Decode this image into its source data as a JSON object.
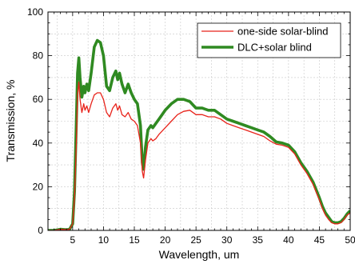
{
  "chart_data": {
    "type": "line",
    "title": "",
    "xlabel": "Wavelength, um",
    "ylabel": "Transmission, %",
    "xlim": [
      1,
      50
    ],
    "ylim": [
      0,
      100
    ],
    "xticks": [
      5,
      10,
      15,
      20,
      25,
      30,
      35,
      40,
      45,
      50
    ],
    "yticks": [
      0,
      20,
      40,
      60,
      80,
      100
    ],
    "xtick_labels": [
      "5",
      "10",
      "15",
      "20",
      "25",
      "30",
      "35",
      "40",
      "45",
      "50"
    ],
    "ytick_labels": [
      "0",
      "20",
      "40",
      "60",
      "80",
      "100"
    ],
    "grid": true,
    "legend_position": "top-right",
    "series": [
      {
        "name": "one-side solar-blind",
        "color": "#e8231b",
        "points": [
          [
            1,
            0
          ],
          [
            2,
            0
          ],
          [
            3,
            0.5
          ],
          [
            4,
            0.3
          ],
          [
            4.5,
            0.5
          ],
          [
            5,
            3
          ],
          [
            5.3,
            15
          ],
          [
            5.6,
            40
          ],
          [
            5.8,
            62
          ],
          [
            6.0,
            68
          ],
          [
            6.2,
            60
          ],
          [
            6.5,
            54
          ],
          [
            6.8,
            58
          ],
          [
            7.0,
            55
          ],
          [
            7.3,
            57
          ],
          [
            7.6,
            54
          ],
          [
            8.0,
            58
          ],
          [
            8.5,
            62
          ],
          [
            9,
            63
          ],
          [
            9.5,
            63
          ],
          [
            10,
            60
          ],
          [
            10.5,
            54
          ],
          [
            11,
            52
          ],
          [
            11.5,
            56
          ],
          [
            12,
            58
          ],
          [
            12.3,
            55
          ],
          [
            12.6,
            57
          ],
          [
            13,
            53
          ],
          [
            13.5,
            52
          ],
          [
            14,
            54
          ],
          [
            14.5,
            51
          ],
          [
            15,
            50
          ],
          [
            15.5,
            48
          ],
          [
            16,
            40
          ],
          [
            16.3,
            27
          ],
          [
            16.5,
            24
          ],
          [
            16.8,
            32
          ],
          [
            17.2,
            40
          ],
          [
            17.7,
            42
          ],
          [
            18,
            41
          ],
          [
            18.5,
            42
          ],
          [
            19,
            44
          ],
          [
            20,
            47
          ],
          [
            21,
            50
          ],
          [
            22,
            53
          ],
          [
            23,
            54.5
          ],
          [
            24,
            55
          ],
          [
            25,
            53
          ],
          [
            26,
            53
          ],
          [
            27,
            52
          ],
          [
            28,
            52
          ],
          [
            29,
            51
          ],
          [
            30,
            49
          ],
          [
            31,
            48
          ],
          [
            32,
            47
          ],
          [
            33,
            46
          ],
          [
            34,
            45
          ],
          [
            35,
            44
          ],
          [
            36,
            43
          ],
          [
            37,
            41
          ],
          [
            38,
            39.5
          ],
          [
            39,
            39
          ],
          [
            40,
            38
          ],
          [
            41,
            35
          ],
          [
            42,
            30
          ],
          [
            43,
            26
          ],
          [
            44,
            21
          ],
          [
            45,
            14
          ],
          [
            45.5,
            10
          ],
          [
            46,
            7
          ],
          [
            46.5,
            5
          ],
          [
            47,
            3.5
          ],
          [
            47.5,
            3
          ],
          [
            48,
            3
          ],
          [
            48.5,
            3.5
          ],
          [
            49,
            5
          ],
          [
            49.5,
            7
          ],
          [
            50,
            8
          ]
        ]
      },
      {
        "name": "DLC+solar blind",
        "color": "#2f8a21",
        "points": [
          [
            1,
            0
          ],
          [
            2,
            0
          ],
          [
            3,
            0.5
          ],
          [
            4,
            0.3
          ],
          [
            4.5,
            0.5
          ],
          [
            5,
            3
          ],
          [
            5.3,
            18
          ],
          [
            5.6,
            50
          ],
          [
            5.8,
            72
          ],
          [
            6.0,
            79
          ],
          [
            6.2,
            70
          ],
          [
            6.5,
            61
          ],
          [
            6.8,
            66
          ],
          [
            7.0,
            63
          ],
          [
            7.3,
            67
          ],
          [
            7.6,
            64
          ],
          [
            8.0,
            72
          ],
          [
            8.5,
            84
          ],
          [
            9,
            87
          ],
          [
            9.5,
            86
          ],
          [
            10,
            80
          ],
          [
            10.5,
            66
          ],
          [
            11,
            64
          ],
          [
            11.5,
            70
          ],
          [
            12,
            73
          ],
          [
            12.3,
            69
          ],
          [
            12.6,
            72
          ],
          [
            13,
            67
          ],
          [
            13.5,
            63
          ],
          [
            14,
            67
          ],
          [
            14.5,
            63
          ],
          [
            15,
            60
          ],
          [
            15.5,
            58
          ],
          [
            16,
            48
          ],
          [
            16.3,
            31
          ],
          [
            16.5,
            28
          ],
          [
            16.8,
            38
          ],
          [
            17.2,
            46
          ],
          [
            17.7,
            48
          ],
          [
            18,
            47
          ],
          [
            18.5,
            49
          ],
          [
            19,
            51
          ],
          [
            20,
            55
          ],
          [
            21,
            58
          ],
          [
            22,
            60
          ],
          [
            23,
            60
          ],
          [
            24,
            59
          ],
          [
            25,
            56
          ],
          [
            26,
            56
          ],
          [
            27,
            55
          ],
          [
            28,
            55
          ],
          [
            29,
            53
          ],
          [
            30,
            51
          ],
          [
            31,
            50
          ],
          [
            32,
            49
          ],
          [
            33,
            48
          ],
          [
            34,
            47
          ],
          [
            35,
            46
          ],
          [
            36,
            45
          ],
          [
            37,
            43
          ],
          [
            38,
            40.5
          ],
          [
            39,
            40
          ],
          [
            40,
            39
          ],
          [
            41,
            36
          ],
          [
            42,
            31
          ],
          [
            43,
            27
          ],
          [
            44,
            22
          ],
          [
            45,
            15
          ],
          [
            45.5,
            11
          ],
          [
            46,
            8
          ],
          [
            46.5,
            6
          ],
          [
            47,
            4
          ],
          [
            47.5,
            3.5
          ],
          [
            48,
            3.5
          ],
          [
            48.5,
            4
          ],
          [
            49,
            5.5
          ],
          [
            49.5,
            7.5
          ],
          [
            50,
            9
          ]
        ]
      }
    ]
  }
}
